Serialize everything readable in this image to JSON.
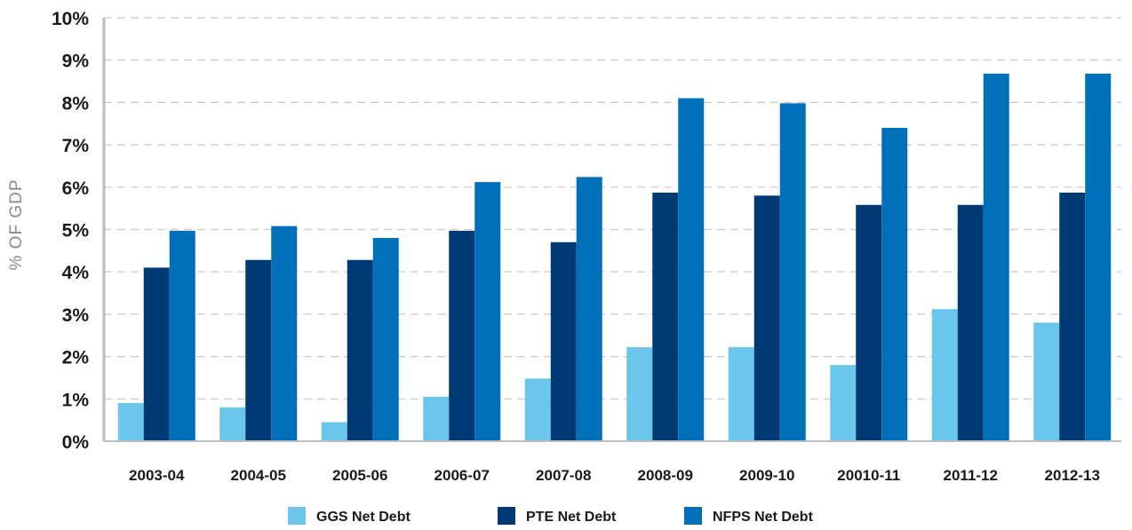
{
  "chart_data": {
    "type": "bar",
    "ylabel": "% OF GDP",
    "xlabel": "",
    "ylim": [
      0,
      10
    ],
    "y_ticks": [
      "0%",
      "1%",
      "2%",
      "3%",
      "4%",
      "5%",
      "6%",
      "7%",
      "8%",
      "9%",
      "10%"
    ],
    "grid": "horizontal dashed",
    "legend_position": "bottom",
    "categories": [
      "2003-04",
      "2004-05",
      "2005-06",
      "2006-07",
      "2007-08",
      "2008-09",
      "2009-10",
      "20010-11",
      "2011-12",
      "2012-13"
    ],
    "series": [
      {
        "name": "GGS Net Debt",
        "color": "#6ac6ea",
        "values": [
          0.9,
          0.8,
          0.45,
          1.05,
          1.48,
          2.22,
          2.22,
          1.8,
          3.12,
          2.8
        ]
      },
      {
        "name": "PTE Net Debt",
        "color": "#003a75",
        "values": [
          4.1,
          4.28,
          4.28,
          4.97,
          4.7,
          5.87,
          5.8,
          5.58,
          5.58,
          5.87
        ]
      },
      {
        "name": "NFPS Net Debt",
        "color": "#0070ba",
        "values": [
          4.97,
          5.08,
          4.8,
          6.12,
          6.24,
          8.1,
          7.98,
          7.4,
          8.68,
          8.68
        ]
      }
    ]
  }
}
